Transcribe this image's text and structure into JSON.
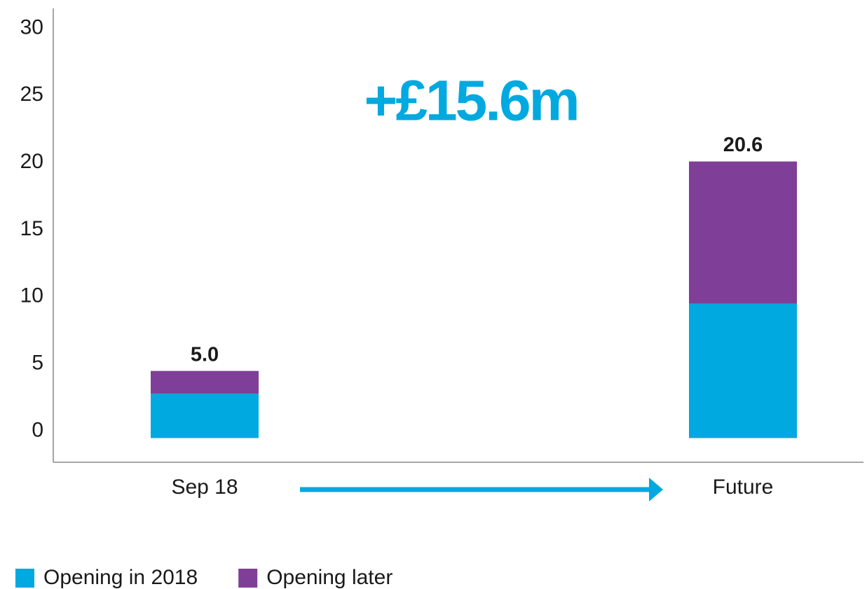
{
  "chart_data": {
    "type": "stacked_bar",
    "annotation": "+£15.6m",
    "categories": [
      "Sep 18",
      "Future"
    ],
    "series": [
      {
        "name": "Opening in 2018",
        "color": "#00a9e0",
        "values": [
          3.3,
          10.0
        ]
      },
      {
        "name": "Opening later",
        "color": "#7f3f98",
        "values": [
          1.7,
          10.6
        ]
      }
    ],
    "totals": [
      5.0,
      20.6
    ],
    "value_labels": [
      "5.0",
      "20.6"
    ],
    "ylim": [
      -1.8,
      32
    ],
    "yticks": [
      0,
      5,
      10,
      15,
      20,
      25,
      30
    ],
    "legend": "bottom"
  }
}
